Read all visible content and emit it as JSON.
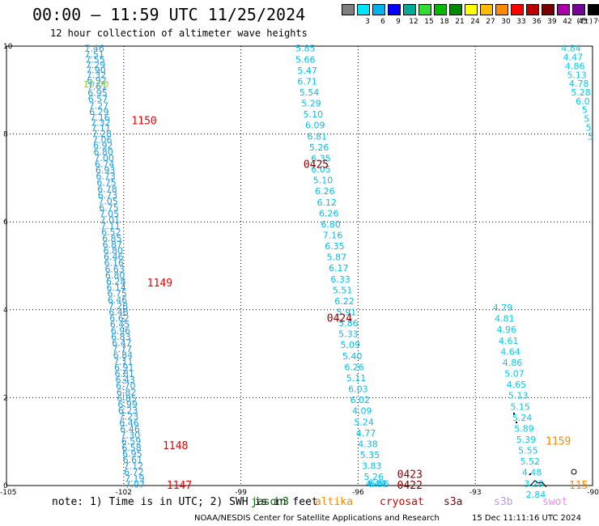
{
  "header": {
    "title": "00:00 – 11:59 UTC 11/25/2024",
    "subtitle": "12 hour collection of altimeter wave heights"
  },
  "legend": {
    "unit": "(ft)",
    "items": [
      {
        "label": "",
        "color": "#7f7f7f"
      },
      {
        "label": "3",
        "color": "#00e5ff"
      },
      {
        "label": "6",
        "color": "#00b2ee"
      },
      {
        "label": "9",
        "color": "#0000ff"
      },
      {
        "label": "12",
        "color": "#00aa99"
      },
      {
        "label": "15",
        "color": "#33dd33"
      },
      {
        "label": "18",
        "color": "#00bb00"
      },
      {
        "label": "21",
        "color": "#008800"
      },
      {
        "label": "24",
        "color": "#ffff00"
      },
      {
        "label": "27",
        "color": "#ffbb00"
      },
      {
        "label": "30",
        "color": "#ff8800"
      },
      {
        "label": "33",
        "color": "#ff0000"
      },
      {
        "label": "36",
        "color": "#bb0000"
      },
      {
        "label": "39",
        "color": "#770000"
      },
      {
        "label": "42",
        "color": "#aa00aa"
      },
      {
        "label": "45",
        "color": "#770099"
      },
      {
        "label": "70",
        "color": "#000000"
      }
    ]
  },
  "footer": {
    "note": "note: 1) Time is in UTC; 2) SWH is in feet",
    "missions": [
      {
        "name": "jason3",
        "color": "#006600"
      },
      {
        "name": "altika",
        "color": "#ff8800"
      },
      {
        "name": "cryosat",
        "color": "#dd0000"
      },
      {
        "name": "s3a",
        "color": "#880000"
      },
      {
        "name": "s3b",
        "color": "#bb99ee"
      },
      {
        "name": "swot",
        "color": "#ee88ee"
      }
    ],
    "credit": "NOAA/NESDIS Center for Satellite Applications and Research",
    "stamp": "15 Dec 11:11:16 UTC 2024"
  },
  "chart_data": {
    "type": "scatter",
    "title": "00:00 – 11:59 UTC 11/25/2024",
    "subtitle": "12 hour collection of altimeter wave heights",
    "xlim": [
      -105,
      -90
    ],
    "ylim": [
      0,
      10
    ],
    "x_ticks": [
      "-105",
      "-102",
      "-99",
      "-96",
      "-93",
      "-90"
    ],
    "y_ticks": [
      "0",
      "2",
      "4",
      "6",
      "8",
      "10"
    ],
    "grid": true,
    "pass_times": [
      {
        "label": "1150",
        "x": -101.8,
        "y": 8.3,
        "color": "#ee0000"
      },
      {
        "label": "1149",
        "x": -101.4,
        "y": 4.6,
        "color": "#ee0000"
      },
      {
        "label": "1148",
        "x": -101.0,
        "y": 0.9,
        "color": "#ee0000"
      },
      {
        "label": "1147",
        "x": -100.9,
        "y": 0.0,
        "color": "#ee0000"
      },
      {
        "label": "0425",
        "x": -97.4,
        "y": 7.3,
        "color": "#880000"
      },
      {
        "label": "0424",
        "x": -96.8,
        "y": 3.8,
        "color": "#880000"
      },
      {
        "label": "0423",
        "x": -95.0,
        "y": 0.25,
        "color": "#880000"
      },
      {
        "label": "0422",
        "x": -95.0,
        "y": 0.0,
        "color": "#880000"
      },
      {
        "label": "1159",
        "x": -91.2,
        "y": 1.0,
        "color": "#ff8800"
      },
      {
        "label": "115",
        "x": -90.6,
        "y": 0.0,
        "color": "#ff8800"
      }
    ],
    "series": [
      {
        "name": "cryosat",
        "color": "#1e9be6",
        "points": [
          {
            "x": -102.75,
            "y": 9.95,
            "v": "7.46"
          },
          {
            "x": -102.75,
            "y": 9.82,
            "v": "7.51"
          },
          {
            "x": -102.73,
            "y": 9.7,
            "v": "7.55"
          },
          {
            "x": -102.72,
            "y": 9.58,
            "v": "7.29"
          },
          {
            "x": -102.71,
            "y": 9.46,
            "v": "7.90"
          },
          {
            "x": -102.7,
            "y": 9.35,
            "v": "7.32"
          },
          {
            "x": -102.69,
            "y": 9.23,
            "v": "6.92"
          },
          {
            "x": -102.68,
            "y": 9.09,
            "v": "7.61"
          },
          {
            "x": -102.67,
            "y": 8.94,
            "v": "6.95"
          },
          {
            "x": -102.66,
            "y": 8.8,
            "v": "6.57"
          },
          {
            "x": -102.64,
            "y": 8.65,
            "v": "7.27"
          },
          {
            "x": -102.63,
            "y": 8.51,
            "v": "6.29"
          },
          {
            "x": -102.61,
            "y": 8.38,
            "v": "7.16"
          },
          {
            "x": -102.59,
            "y": 8.26,
            "v": "7.32"
          },
          {
            "x": -102.58,
            "y": 8.14,
            "v": "7.11"
          },
          {
            "x": -102.56,
            "y": 8.01,
            "v": "7.28"
          },
          {
            "x": -102.55,
            "y": 7.87,
            "v": "7.06"
          },
          {
            "x": -102.53,
            "y": 7.74,
            "v": "6.92"
          },
          {
            "x": -102.52,
            "y": 7.6,
            "v": "6.80"
          },
          {
            "x": -102.5,
            "y": 7.46,
            "v": "7.00"
          },
          {
            "x": -102.49,
            "y": 7.32,
            "v": "6.74"
          },
          {
            "x": -102.47,
            "y": 7.18,
            "v": "6.93"
          },
          {
            "x": -102.46,
            "y": 7.04,
            "v": "6.73"
          },
          {
            "x": -102.44,
            "y": 6.9,
            "v": "6.75"
          },
          {
            "x": -102.42,
            "y": 6.75,
            "v": "6.78"
          },
          {
            "x": -102.41,
            "y": 6.61,
            "v": "6.73"
          },
          {
            "x": -102.4,
            "y": 6.47,
            "v": "7.05"
          },
          {
            "x": -102.38,
            "y": 6.33,
            "v": "6.75"
          },
          {
            "x": -102.37,
            "y": 6.19,
            "v": "7.05"
          },
          {
            "x": -102.35,
            "y": 6.05,
            "v": "7.01"
          },
          {
            "x": -102.34,
            "y": 5.91,
            "v": "7.11"
          },
          {
            "x": -102.32,
            "y": 5.77,
            "v": "6.52"
          },
          {
            "x": -102.3,
            "y": 5.63,
            "v": "6.85"
          },
          {
            "x": -102.29,
            "y": 5.49,
            "v": "6.87"
          },
          {
            "x": -102.27,
            "y": 5.35,
            "v": "6.80"
          },
          {
            "x": -102.26,
            "y": 5.21,
            "v": "6.46"
          },
          {
            "x": -102.25,
            "y": 5.07,
            "v": "6.16"
          },
          {
            "x": -102.23,
            "y": 4.93,
            "v": "6.63"
          },
          {
            "x": -102.22,
            "y": 4.79,
            "v": "6.80"
          },
          {
            "x": -102.2,
            "y": 4.65,
            "v": "6.28"
          },
          {
            "x": -102.19,
            "y": 4.51,
            "v": "6.14"
          },
          {
            "x": -102.17,
            "y": 4.37,
            "v": "6.75"
          },
          {
            "x": -102.16,
            "y": 4.23,
            "v": "6.46"
          },
          {
            "x": -102.14,
            "y": 4.09,
            "v": "7.28"
          },
          {
            "x": -102.13,
            "y": 3.95,
            "v": "6.48"
          },
          {
            "x": -102.11,
            "y": 3.81,
            "v": "6.62"
          },
          {
            "x": -102.1,
            "y": 3.67,
            "v": "6.45"
          },
          {
            "x": -102.08,
            "y": 3.53,
            "v": "6.96"
          },
          {
            "x": -102.07,
            "y": 3.39,
            "v": "6.83"
          },
          {
            "x": -102.05,
            "y": 3.25,
            "v": "6.47"
          },
          {
            "x": -102.04,
            "y": 3.11,
            "v": "7.77"
          },
          {
            "x": -102.02,
            "y": 2.97,
            "v": "6.84"
          },
          {
            "x": -102.01,
            "y": 2.83,
            "v": "7.11"
          },
          {
            "x": -101.99,
            "y": 2.69,
            "v": "6.91"
          },
          {
            "x": -101.98,
            "y": 2.55,
            "v": "6.81"
          },
          {
            "x": -101.96,
            "y": 2.41,
            "v": "6.43"
          },
          {
            "x": -101.95,
            "y": 2.27,
            "v": "6.70"
          },
          {
            "x": -101.93,
            "y": 2.13,
            "v": "6.82"
          },
          {
            "x": -101.92,
            "y": 1.99,
            "v": "6.85"
          },
          {
            "x": -101.9,
            "y": 1.85,
            "v": "6.99"
          },
          {
            "x": -101.89,
            "y": 1.71,
            "v": "6.23"
          },
          {
            "x": -101.87,
            "y": 1.57,
            "v": "7.23"
          },
          {
            "x": -101.86,
            "y": 1.43,
            "v": "6.46"
          },
          {
            "x": -101.84,
            "y": 1.29,
            "v": "6.46"
          },
          {
            "x": -101.83,
            "y": 1.15,
            "v": "7.30"
          },
          {
            "x": -101.81,
            "y": 1.01,
            "v": "6.59"
          },
          {
            "x": -101.8,
            "y": 0.87,
            "v": "6.58"
          },
          {
            "x": -101.78,
            "y": 0.73,
            "v": "6.95"
          },
          {
            "x": -101.77,
            "y": 0.59,
            "v": "6.61"
          },
          {
            "x": -101.75,
            "y": 0.45,
            "v": "7.12"
          },
          {
            "x": -101.74,
            "y": 0.31,
            "v": "6.72"
          },
          {
            "x": -101.72,
            "y": 0.17,
            "v": "7.19"
          },
          {
            "x": -101.71,
            "y": 0.03,
            "v": "7.07"
          }
        ]
      },
      {
        "name": "s3a",
        "color": "#00bfee",
        "points": [
          {
            "x": -97.35,
            "y": 9.95,
            "v": "5.85"
          },
          {
            "x": -97.35,
            "y": 9.7,
            "v": "5.66"
          },
          {
            "x": -97.3,
            "y": 9.45,
            "v": "5.47"
          },
          {
            "x": -97.3,
            "y": 9.2,
            "v": "6.71"
          },
          {
            "x": -97.25,
            "y": 8.95,
            "v": "5.54"
          },
          {
            "x": -97.2,
            "y": 8.7,
            "v": "5.29"
          },
          {
            "x": -97.15,
            "y": 8.45,
            "v": "5.10"
          },
          {
            "x": -97.1,
            "y": 8.2,
            "v": "6.09"
          },
          {
            "x": -97.05,
            "y": 7.95,
            "v": "6.81"
          },
          {
            "x": -97.0,
            "y": 7.7,
            "v": "5.26"
          },
          {
            "x": -96.95,
            "y": 7.45,
            "v": "6.35"
          },
          {
            "x": -96.95,
            "y": 7.2,
            "v": "6.05"
          },
          {
            "x": -96.9,
            "y": 6.95,
            "v": "5.10"
          },
          {
            "x": -96.85,
            "y": 6.7,
            "v": "6.26"
          },
          {
            "x": -96.8,
            "y": 6.45,
            "v": "6.12"
          },
          {
            "x": -96.75,
            "y": 6.2,
            "v": "6.26"
          },
          {
            "x": -96.7,
            "y": 5.95,
            "v": "6.80"
          },
          {
            "x": -96.65,
            "y": 5.7,
            "v": "7.16"
          },
          {
            "x": -96.6,
            "y": 5.45,
            "v": "6.35"
          },
          {
            "x": -96.55,
            "y": 5.2,
            "v": "5.87"
          },
          {
            "x": -96.5,
            "y": 4.95,
            "v": "6.17"
          },
          {
            "x": -96.45,
            "y": 4.7,
            "v": "6.33"
          },
          {
            "x": -96.4,
            "y": 4.45,
            "v": "5.51"
          },
          {
            "x": -96.35,
            "y": 4.2,
            "v": "6.22"
          },
          {
            "x": -96.3,
            "y": 3.95,
            "v": "5.91"
          },
          {
            "x": -96.25,
            "y": 3.7,
            "v": "5.86"
          },
          {
            "x": -96.25,
            "y": 3.45,
            "v": "5.33"
          },
          {
            "x": -96.2,
            "y": 3.2,
            "v": "5.09"
          },
          {
            "x": -96.15,
            "y": 2.95,
            "v": "5.40"
          },
          {
            "x": -96.1,
            "y": 2.7,
            "v": "6.26"
          },
          {
            "x": -96.05,
            "y": 2.45,
            "v": "5.11"
          },
          {
            "x": -96.0,
            "y": 2.2,
            "v": "6.03"
          },
          {
            "x": -95.95,
            "y": 1.95,
            "v": "6.02"
          },
          {
            "x": -95.9,
            "y": 1.7,
            "v": "4.09"
          },
          {
            "x": -95.85,
            "y": 1.45,
            "v": "5.24"
          },
          {
            "x": -95.8,
            "y": 1.2,
            "v": "4.77"
          },
          {
            "x": -95.75,
            "y": 0.95,
            "v": "4.38"
          },
          {
            "x": -95.7,
            "y": 0.7,
            "v": "5.35"
          },
          {
            "x": -95.65,
            "y": 0.45,
            "v": "3.83"
          },
          {
            "x": -95.6,
            "y": 0.2,
            "v": "5.26"
          },
          {
            "x": -95.55,
            "y": -0.05,
            "v": "4.44"
          },
          {
            "x": -95.5,
            "y": -0.3,
            "v": "6.81"
          },
          {
            "x": -95.45,
            "y": -0.55,
            "v": "6.56"
          }
        ]
      },
      {
        "name": "altika",
        "color": "#00ccee",
        "points": [
          {
            "x": -90.55,
            "y": 9.95,
            "v": "4.84"
          },
          {
            "x": -90.5,
            "y": 9.75,
            "v": "4.47"
          },
          {
            "x": -90.45,
            "y": 9.55,
            "v": "4.86"
          },
          {
            "x": -90.4,
            "y": 9.35,
            "v": "5.13"
          },
          {
            "x": -90.35,
            "y": 9.15,
            "v": "4.78"
          },
          {
            "x": -90.3,
            "y": 8.95,
            "v": "5.28"
          },
          {
            "x": -90.25,
            "y": 8.75,
            "v": "6.0"
          },
          {
            "x": -90.2,
            "y": 8.55,
            "v": "5"
          },
          {
            "x": -90.15,
            "y": 8.35,
            "v": "5"
          },
          {
            "x": -90.1,
            "y": 8.15,
            "v": "5"
          },
          {
            "x": -90.05,
            "y": 7.95,
            "v": "5"
          }
        ]
      },
      {
        "name": "jason3",
        "color": "#00ccee",
        "points": [
          {
            "x": -92.3,
            "y": 4.05,
            "v": "4.79"
          },
          {
            "x": -92.25,
            "y": 3.8,
            "v": "4.81"
          },
          {
            "x": -92.2,
            "y": 3.55,
            "v": "4.96"
          },
          {
            "x": -92.15,
            "y": 3.3,
            "v": "4.61"
          },
          {
            "x": -92.1,
            "y": 3.05,
            "v": "4.64"
          },
          {
            "x": -92.05,
            "y": 2.8,
            "v": "4.86"
          },
          {
            "x": -92.0,
            "y": 2.55,
            "v": "5.07"
          },
          {
            "x": -91.95,
            "y": 2.3,
            "v": "4.65"
          },
          {
            "x": -91.9,
            "y": 2.05,
            "v": "5.13"
          },
          {
            "x": -91.85,
            "y": 1.8,
            "v": "5.15"
          },
          {
            "x": -91.8,
            "y": 1.55,
            "v": "5.24"
          },
          {
            "x": -91.75,
            "y": 1.3,
            "v": "5.89"
          },
          {
            "x": -91.7,
            "y": 1.05,
            "v": "5.39"
          },
          {
            "x": -91.65,
            "y": 0.8,
            "v": "5.55"
          },
          {
            "x": -91.6,
            "y": 0.55,
            "v": "5.52"
          },
          {
            "x": -91.55,
            "y": 0.3,
            "v": "4.48"
          },
          {
            "x": -91.5,
            "y": 0.05,
            "v": "3.29"
          },
          {
            "x": -91.45,
            "y": -0.2,
            "v": "2.84"
          }
        ]
      }
    ],
    "outlier": {
      "x": -102.75,
      "y": 8.6,
      "v": "10.00",
      "color": "#99cc33"
    }
  }
}
